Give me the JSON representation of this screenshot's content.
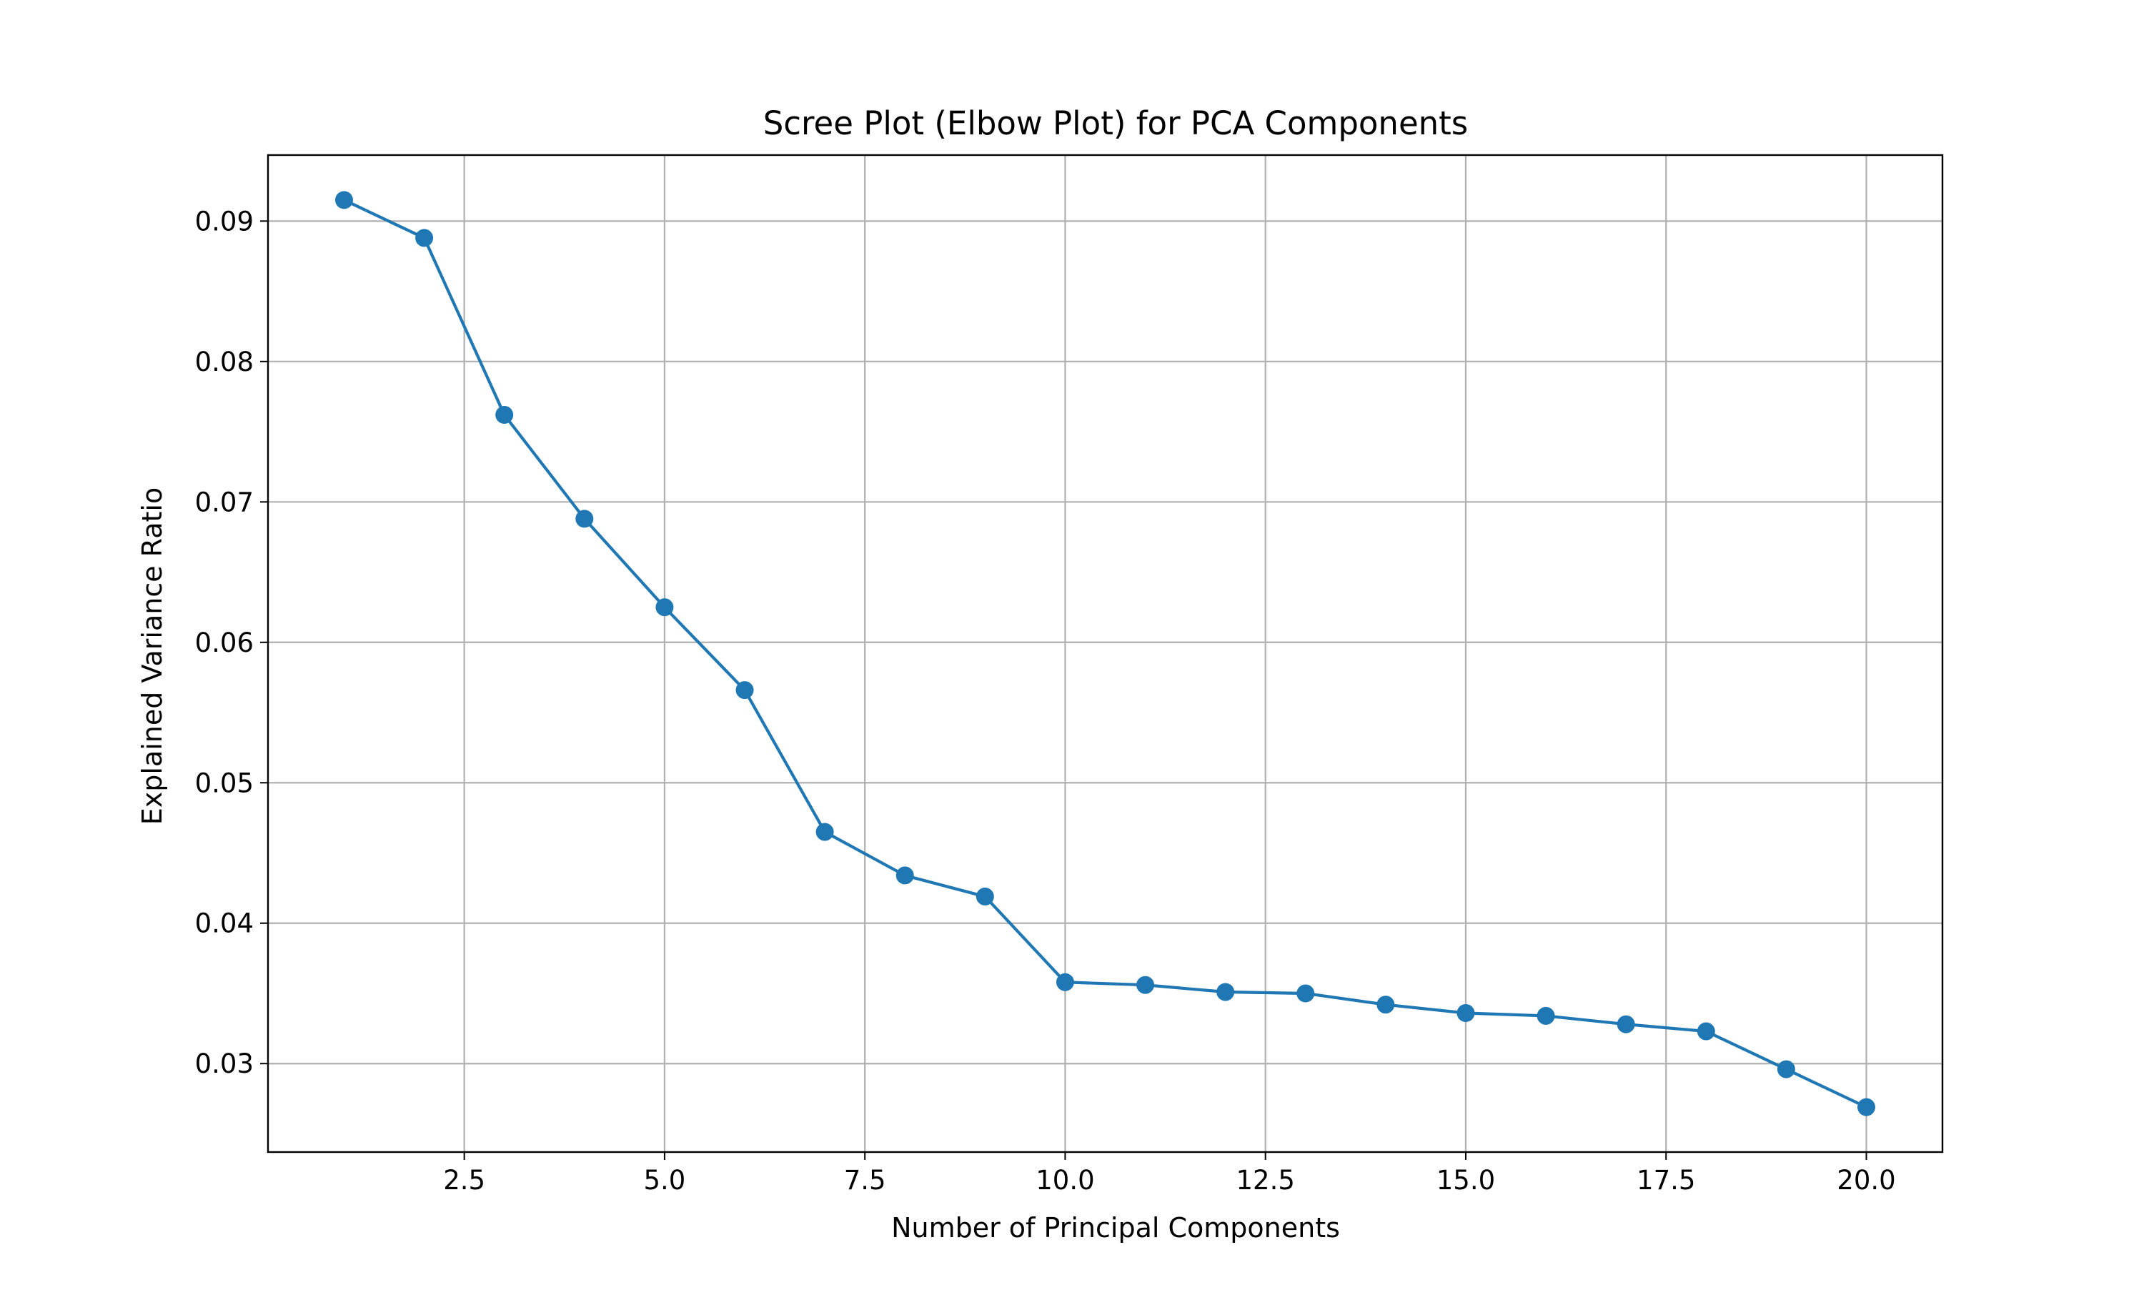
{
  "chart_data": {
    "type": "line",
    "title": "Scree Plot (Elbow Plot) for PCA Components",
    "xlabel": "Number of Principal Components",
    "ylabel": "Explained Variance Ratio",
    "xlim": [
      0.05,
      20.95
    ],
    "ylim": [
      0.0237,
      0.0947
    ],
    "xticks": [
      2.5,
      5.0,
      7.5,
      10.0,
      12.5,
      15.0,
      17.5,
      20.0
    ],
    "xtick_labels": [
      "2.5",
      "5.0",
      "7.5",
      "10.0",
      "12.5",
      "15.0",
      "17.5",
      "20.0"
    ],
    "yticks": [
      0.03,
      0.04,
      0.05,
      0.06,
      0.07,
      0.08,
      0.09
    ],
    "ytick_labels": [
      "0.03",
      "0.04",
      "0.05",
      "0.06",
      "0.07",
      "0.08",
      "0.09"
    ],
    "grid": true,
    "marker": "circle",
    "color": "#1f77b4",
    "x": [
      1,
      2,
      3,
      4,
      5,
      6,
      7,
      8,
      9,
      10,
      11,
      12,
      13,
      14,
      15,
      16,
      17,
      18,
      19,
      20
    ],
    "y": [
      0.0915,
      0.0888,
      0.0762,
      0.0688,
      0.0625,
      0.0566,
      0.0465,
      0.0434,
      0.0419,
      0.0358,
      0.0356,
      0.0351,
      0.035,
      0.0342,
      0.0336,
      0.0334,
      0.0328,
      0.0323,
      0.0296,
      0.0269
    ]
  }
}
